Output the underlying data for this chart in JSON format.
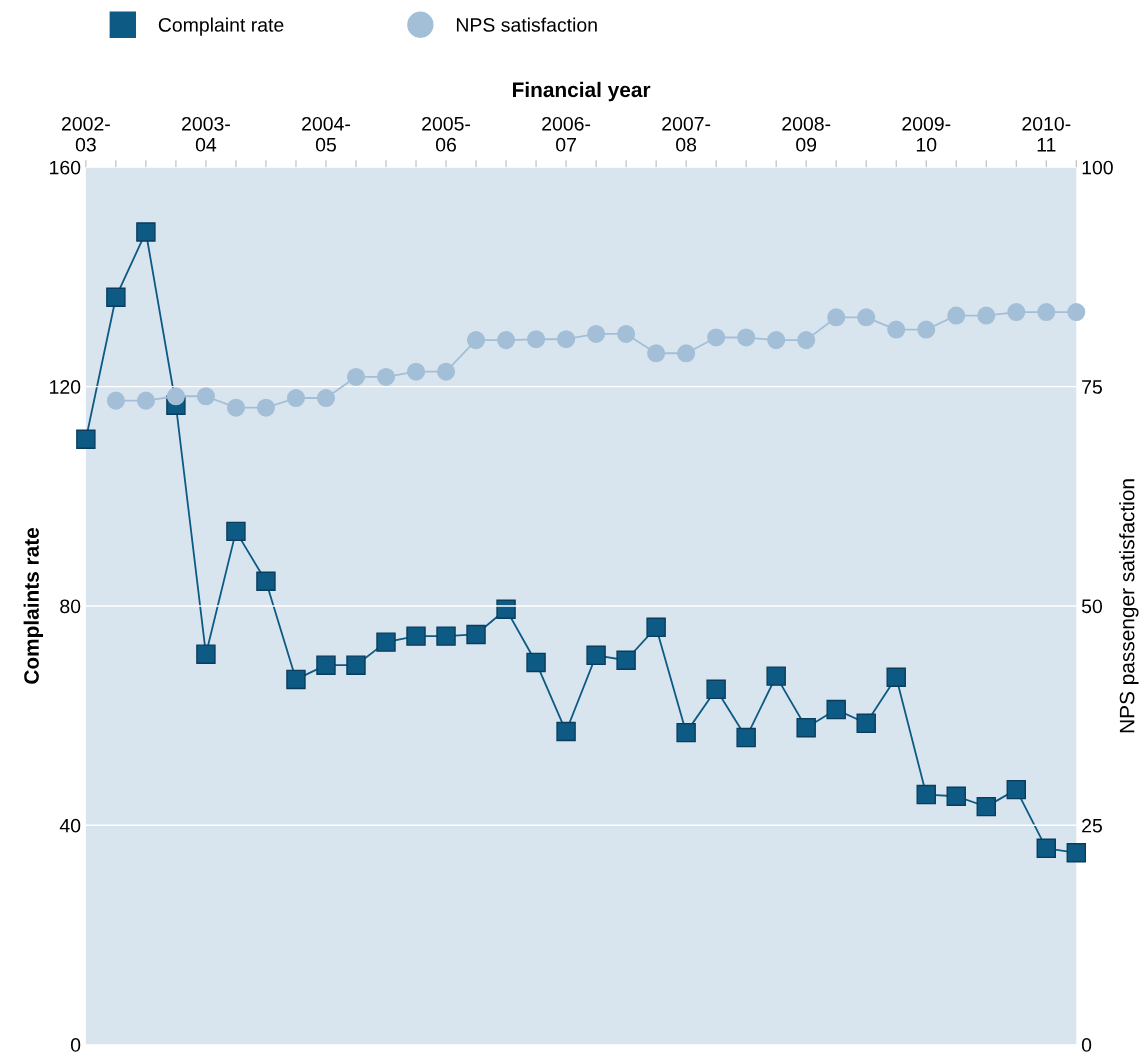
{
  "chart_data": {
    "type": "line",
    "xlabel": "Financial year",
    "ylabel": "Complaints rate",
    "y2label": "NPS passenger satisfaction",
    "categories": [
      "2002-\n03",
      null,
      null,
      null,
      "2003-\n04",
      null,
      null,
      null,
      "2004-\n05",
      null,
      null,
      null,
      "2005-\n06",
      null,
      null,
      null,
      "2006-\n07",
      null,
      null,
      null,
      "2007-\n08",
      null,
      null,
      null,
      "2008-\n09",
      null,
      null,
      null,
      "2009-\n10",
      null,
      null,
      null,
      "2010-\n11",
      null
    ],
    "series": [
      {
        "name": "Complaint rate",
        "color": "#0d5a85",
        "marker": "square",
        "values": [
          110.4,
          136.3,
          148.2,
          116.6,
          71.2,
          93.6,
          84.5,
          66.6,
          69.2,
          69.2,
          73.4,
          74.5,
          74.5,
          74.8,
          79.4,
          69.7,
          57.1,
          71.0,
          70.1,
          76.1,
          56.9,
          64.8,
          56.0,
          67.2,
          57.8,
          61.1,
          58.6,
          67.0,
          45.6,
          45.3,
          43.4,
          46.5,
          35.8,
          35.0
        ]
      },
      {
        "name": "NPS satisfaction",
        "color": "#a3bfd8",
        "marker": "circle",
        "axis": "y2",
        "values": [
          null,
          73.4,
          73.4,
          73.9,
          73.9,
          72.6,
          72.6,
          73.7,
          73.7,
          76.1,
          76.1,
          76.7,
          76.7,
          80.3,
          80.3,
          80.4,
          80.4,
          81.0,
          81.0,
          78.8,
          78.8,
          80.6,
          80.6,
          80.3,
          80.3,
          82.9,
          82.9,
          81.5,
          81.5,
          83.1,
          83.1,
          83.5,
          83.5,
          83.5
        ]
      }
    ],
    "ylim": [
      0,
      160
    ],
    "yticks": [
      0,
      40,
      80,
      120,
      160
    ],
    "y2lim": [
      0,
      100
    ],
    "y2ticks": [
      0,
      25,
      50,
      75,
      100
    ],
    "grid": "y",
    "legend": "top left",
    "line_style": "solid"
  }
}
